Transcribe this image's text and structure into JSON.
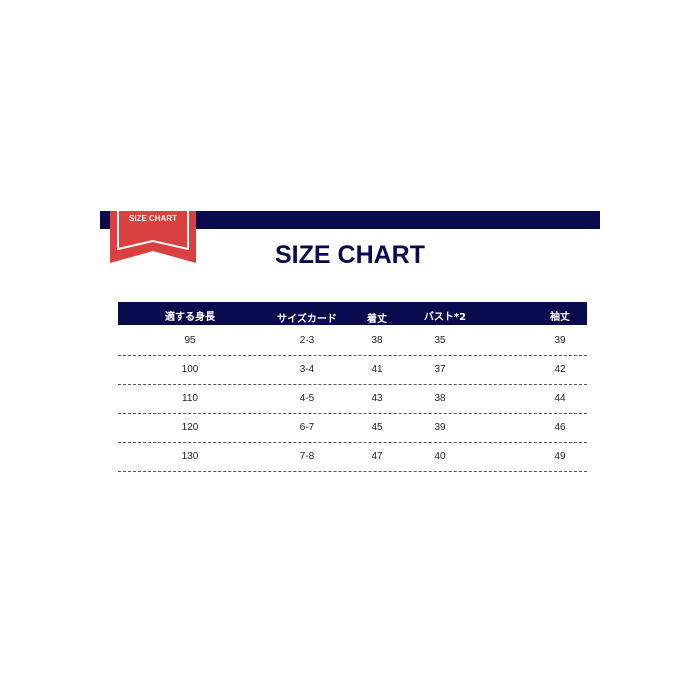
{
  "banner": {
    "ribbon_label": "SIZE CHART",
    "ribbon_color": "#d9403f",
    "bar_color": "#0a0a4f"
  },
  "title": "SIZE CHART",
  "table": {
    "headers": [
      "適する身長",
      "サイズカード",
      "着丈",
      "バスト*2",
      "袖丈"
    ],
    "rows": [
      [
        "95",
        "2-3",
        "38",
        "35",
        "39"
      ],
      [
        "100",
        "3-4",
        "41",
        "37",
        "42"
      ],
      [
        "110",
        "4-5",
        "43",
        "38",
        "44"
      ],
      [
        "120",
        "6-7",
        "45",
        "39",
        "46"
      ],
      [
        "130",
        "7-8",
        "47",
        "40",
        "49"
      ]
    ]
  }
}
